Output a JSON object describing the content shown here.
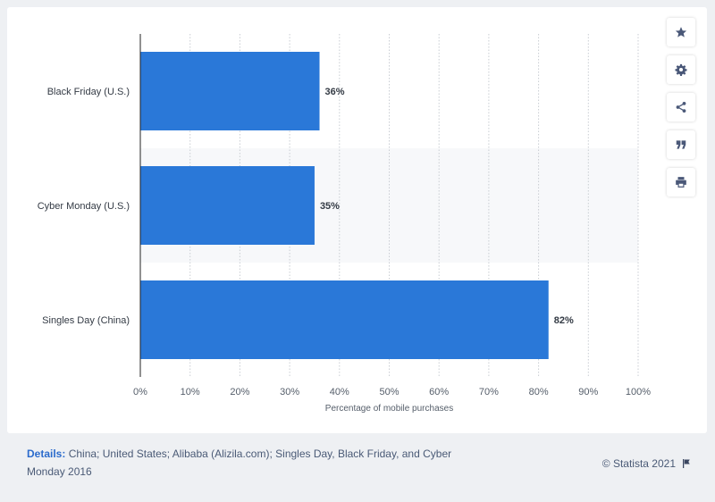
{
  "chart_data": {
    "type": "bar",
    "orientation": "horizontal",
    "categories": [
      "Black Friday (U.S.)",
      "Cyber Monday (U.S.)",
      "Singles Day (China)"
    ],
    "values": [
      36,
      35,
      82
    ],
    "value_labels": [
      "36%",
      "35%",
      "82%"
    ],
    "xlabel": "Percentage of mobile purchases",
    "xlim": [
      0,
      100
    ],
    "x_ticks": [
      "0%",
      "10%",
      "20%",
      "30%",
      "40%",
      "50%",
      "60%",
      "70%",
      "80%",
      "90%",
      "100%"
    ],
    "grid": true,
    "bar_color": "#2a78d8"
  },
  "toolbar": {
    "buttons": [
      {
        "name": "star-button",
        "icon": "star-icon"
      },
      {
        "name": "settings-button",
        "icon": "gear-icon"
      },
      {
        "name": "share-button",
        "icon": "share-icon"
      },
      {
        "name": "cite-button",
        "icon": "quote-icon"
      },
      {
        "name": "print-button",
        "icon": "print-icon"
      }
    ]
  },
  "footer": {
    "details_label": "Details:",
    "details_text": "China; United States; Alibaba (Alizila.com); Singles Day, Black Friday, and Cyber Monday 2016",
    "copyright": "© Statista 2021"
  }
}
